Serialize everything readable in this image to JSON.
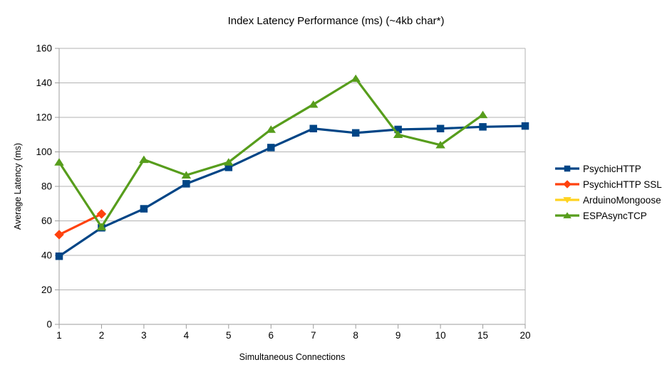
{
  "chart_data": {
    "type": "line",
    "title": "Index Latency Performance (ms) (~4kb char*)",
    "xlabel": "Simultaneous Connections",
    "ylabel": "Average Latency (ms)",
    "categories": [
      "1",
      "2",
      "3",
      "4",
      "5",
      "6",
      "7",
      "8",
      "9",
      "10",
      "15",
      "20"
    ],
    "ylim": [
      0,
      160
    ],
    "ytick_step": 20,
    "y_ticks": [
      0,
      20,
      40,
      60,
      80,
      100,
      120,
      140,
      160
    ],
    "grid": "horizontal",
    "legend_position": "right",
    "series": [
      {
        "name": "PsychicHTTP",
        "color": "#004586",
        "marker": "square",
        "values": [
          39.5,
          56,
          67,
          81.5,
          91,
          102.5,
          113.5,
          111,
          113,
          113.5,
          114.5,
          115
        ]
      },
      {
        "name": "PsychicHTTP SSL",
        "color": "#ff420e",
        "marker": "diamond",
        "values": [
          52,
          64,
          null,
          null,
          null,
          null,
          null,
          null,
          null,
          null,
          null,
          null
        ]
      },
      {
        "name": "ArduinoMongoose",
        "color": "#ffd320",
        "marker": "triangle-down",
        "values": [
          null,
          null,
          null,
          null,
          null,
          null,
          null,
          null,
          null,
          null,
          null,
          null
        ]
      },
      {
        "name": "ESPAsyncTCP",
        "color": "#579d1c",
        "marker": "triangle-up",
        "values": [
          94,
          56.5,
          95.5,
          86.5,
          94,
          113,
          127.5,
          142.5,
          110,
          104,
          121.5,
          null
        ]
      }
    ],
    "colors": {
      "gridline": "#b3b3b3",
      "axis": "#9c9c9c",
      "background": "#ffffff"
    }
  }
}
